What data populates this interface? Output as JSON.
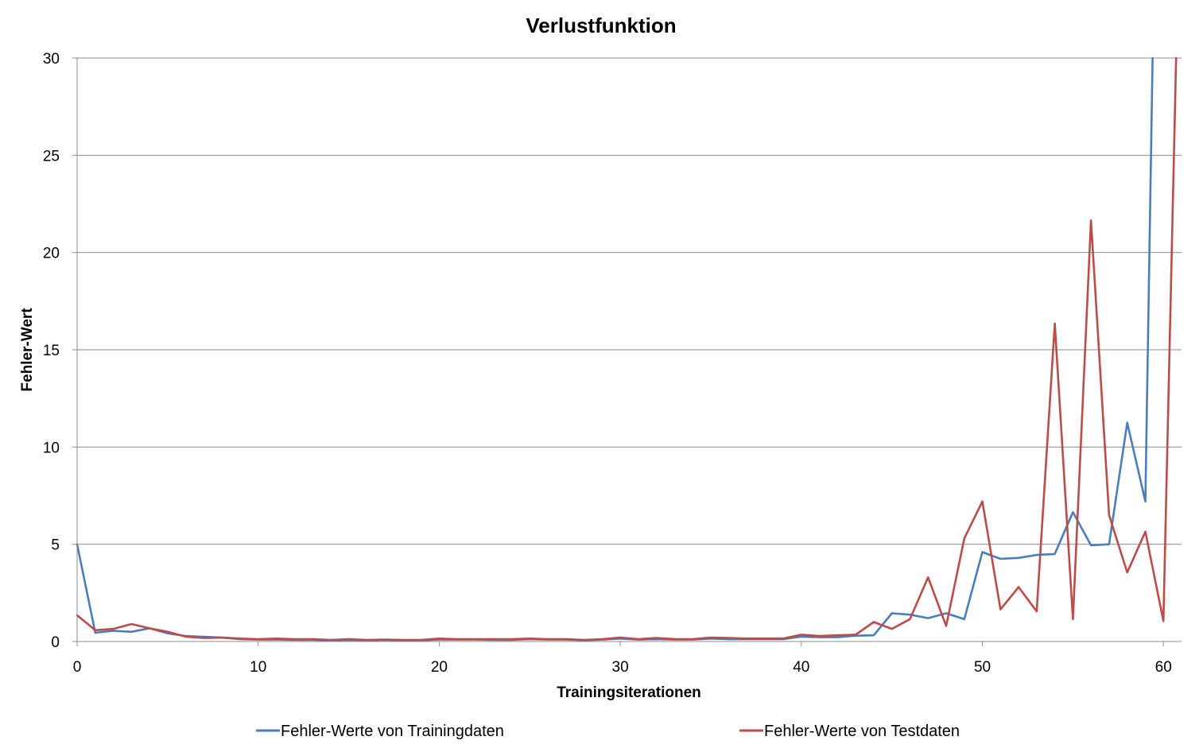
{
  "chart_data": {
    "type": "line",
    "title": "Verlustfunktion",
    "xlabel": "Trainingsiterationen",
    "ylabel": "Fehler-Wert",
    "xlim": [
      0,
      61
    ],
    "ylim": [
      0,
      30
    ],
    "xticks": [
      0,
      10,
      20,
      30,
      40,
      50,
      60
    ],
    "yticks": [
      0,
      5,
      10,
      15,
      20,
      25,
      30
    ],
    "grid": "horizontal",
    "legend_position": "bottom",
    "series": [
      {
        "name": "Fehler-Werte von Trainingdaten",
        "color": "#4a7ebb",
        "x": [
          0,
          1,
          2,
          3,
          4,
          5,
          6,
          7,
          8,
          9,
          10,
          11,
          12,
          13,
          14,
          15,
          16,
          17,
          18,
          19,
          20,
          21,
          22,
          23,
          24,
          25,
          26,
          27,
          28,
          29,
          30,
          31,
          32,
          33,
          34,
          35,
          36,
          37,
          38,
          39,
          40,
          41,
          42,
          43,
          44,
          45,
          46,
          47,
          48,
          49,
          50,
          51,
          52,
          53,
          54,
          55,
          56,
          57,
          58,
          59,
          59.4
        ],
        "values": [
          5.0,
          0.45,
          0.55,
          0.5,
          0.68,
          0.42,
          0.28,
          0.24,
          0.2,
          0.12,
          0.1,
          0.1,
          0.08,
          0.08,
          0.06,
          0.08,
          0.06,
          0.08,
          0.06,
          0.06,
          0.1,
          0.1,
          0.1,
          0.08,
          0.08,
          0.12,
          0.1,
          0.1,
          0.06,
          0.1,
          0.15,
          0.1,
          0.12,
          0.1,
          0.1,
          0.15,
          0.12,
          0.12,
          0.12,
          0.12,
          0.25,
          0.22,
          0.22,
          0.3,
          0.32,
          1.45,
          1.38,
          1.2,
          1.45,
          1.15,
          4.6,
          4.25,
          4.3,
          4.45,
          4.5,
          6.65,
          4.95,
          5.0,
          11.25,
          7.2,
          30.0
        ]
      },
      {
        "name": "Fehler-Werte von Testdaten",
        "color": "#be4b48",
        "x": [
          0,
          1,
          2,
          3,
          4,
          5,
          6,
          7,
          8,
          9,
          10,
          11,
          12,
          13,
          14,
          15,
          16,
          17,
          18,
          19,
          20,
          21,
          22,
          23,
          24,
          25,
          26,
          27,
          28,
          29,
          30,
          31,
          32,
          33,
          34,
          35,
          36,
          37,
          38,
          39,
          40,
          41,
          42,
          43,
          44,
          45,
          46,
          47,
          48,
          49,
          50,
          51,
          52,
          53,
          54,
          55,
          56,
          57,
          58,
          59,
          60,
          60.7
        ],
        "values": [
          1.35,
          0.58,
          0.65,
          0.9,
          0.68,
          0.5,
          0.25,
          0.18,
          0.2,
          0.15,
          0.12,
          0.15,
          0.12,
          0.12,
          0.08,
          0.12,
          0.08,
          0.1,
          0.08,
          0.08,
          0.15,
          0.12,
          0.12,
          0.12,
          0.12,
          0.15,
          0.12,
          0.12,
          0.08,
          0.12,
          0.2,
          0.12,
          0.18,
          0.12,
          0.12,
          0.2,
          0.18,
          0.15,
          0.15,
          0.15,
          0.35,
          0.28,
          0.32,
          0.35,
          1.0,
          0.65,
          1.15,
          3.3,
          0.8,
          5.3,
          7.2,
          1.65,
          2.8,
          1.55,
          16.35,
          1.15,
          21.65,
          6.5,
          3.55,
          5.65,
          1.05,
          30.0
        ]
      }
    ]
  }
}
